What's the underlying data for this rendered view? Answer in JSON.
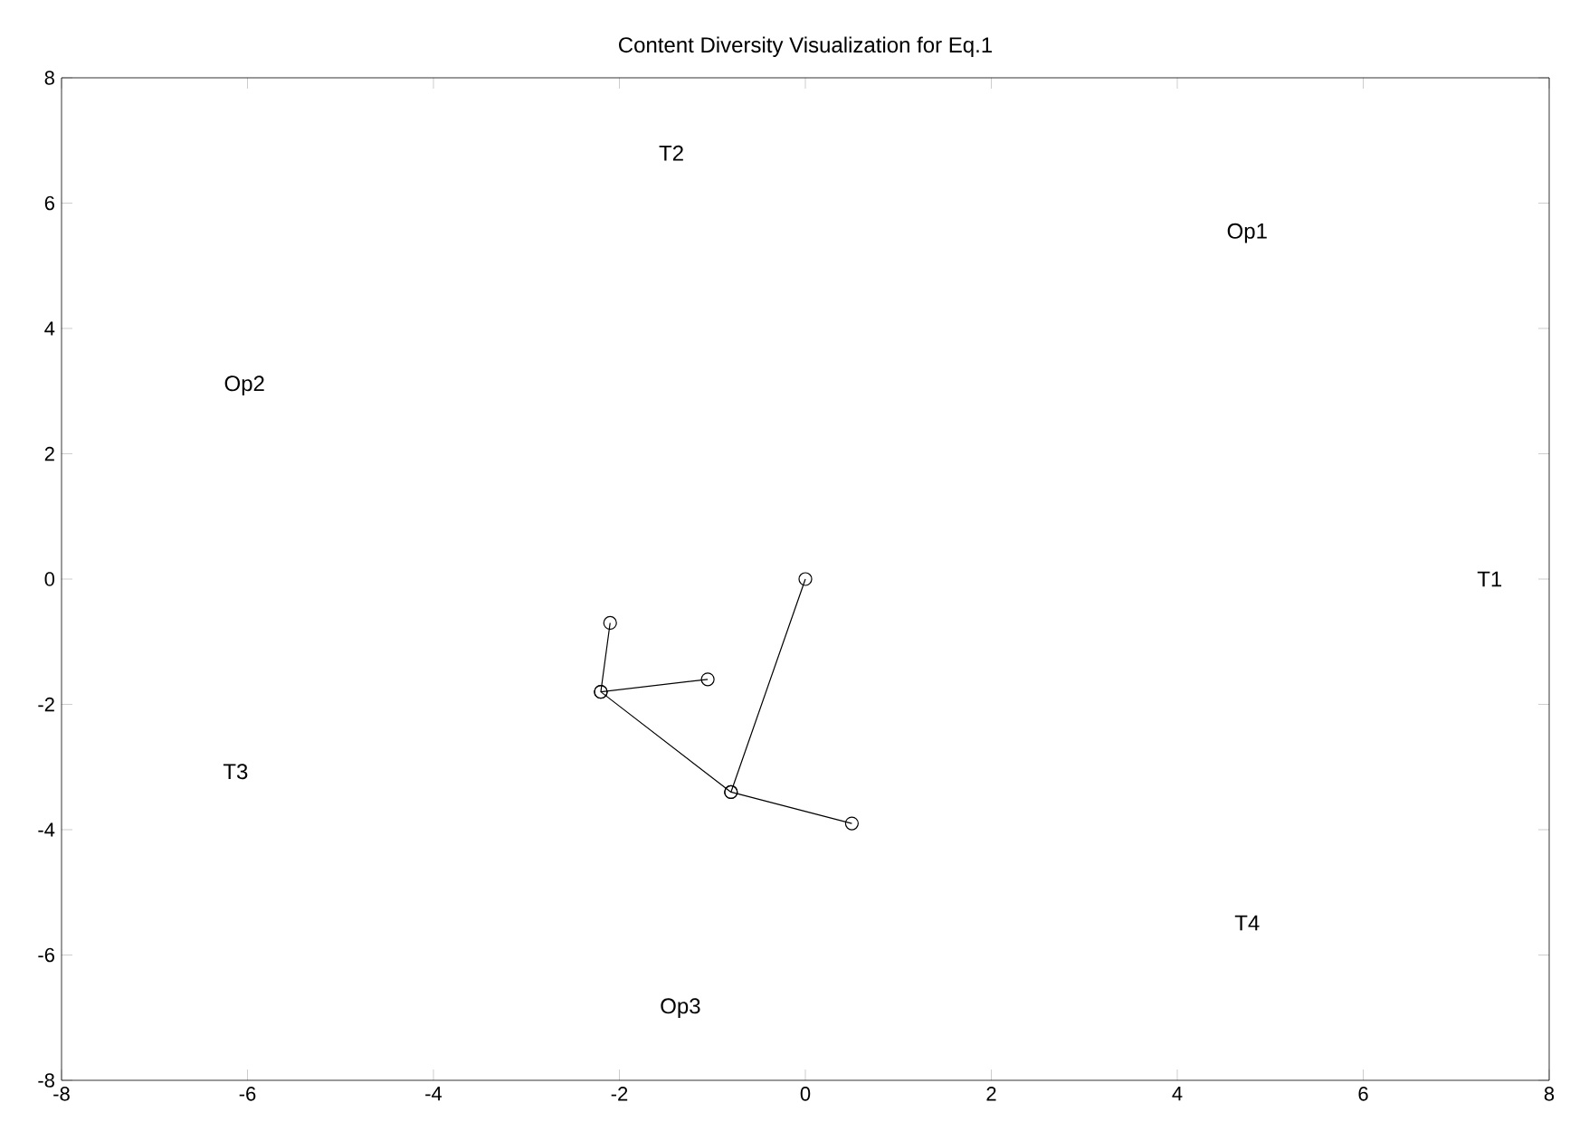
{
  "chart_data": {
    "type": "line",
    "title": "Content Diversity Visualization for Eq.1",
    "xlim": [
      -8,
      8
    ],
    "ylim": [
      -8,
      8
    ],
    "xticks": [
      -8,
      -6,
      -4,
      -2,
      0,
      2,
      4,
      6,
      8
    ],
    "yticks": [
      -8,
      -6,
      -4,
      -2,
      0,
      2,
      4,
      6,
      8
    ],
    "grid": false,
    "marker": "circle",
    "line_style": "solid",
    "series": [
      {
        "color": "#000000",
        "x": [
          0.5,
          -0.8,
          0,
          null,
          -2.1,
          -2.2,
          -1.05,
          null,
          -2.2,
          -0.8
        ],
        "values": [
          -3.9,
          -3.4,
          0,
          null,
          -0.7,
          -1.8,
          -1.6,
          null,
          -1.8,
          -3.4
        ]
      }
    ],
    "annotations": [
      "T2",
      "Op1",
      "Op2",
      "T1",
      "T3",
      "T4",
      "Op3"
    ]
  }
}
